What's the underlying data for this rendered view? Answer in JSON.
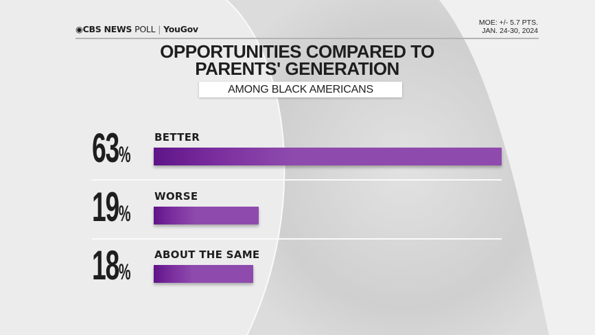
{
  "header": {
    "brand": "CBS NEWS",
    "brand_suffix": "POLL",
    "partner": "YouGov",
    "moe": "MOE: +/- 5.7 PTS.",
    "dates": "JAN. 24-30, 2024"
  },
  "chart_data": {
    "type": "bar",
    "orientation": "horizontal",
    "title": "OPPORTUNITIES COMPARED TO PARENTS' GENERATION",
    "subtitle": "AMONG BLACK AMERICANS",
    "categories": [
      "BETTER",
      "WORSE",
      "ABOUT THE SAME"
    ],
    "values": [
      63,
      19,
      18
    ],
    "value_labels": [
      "63",
      "19",
      "18"
    ],
    "unit": "%",
    "xlim": [
      0,
      63
    ],
    "bar_color": "#8e4bad",
    "bar_color_dark": "#5e1489"
  }
}
